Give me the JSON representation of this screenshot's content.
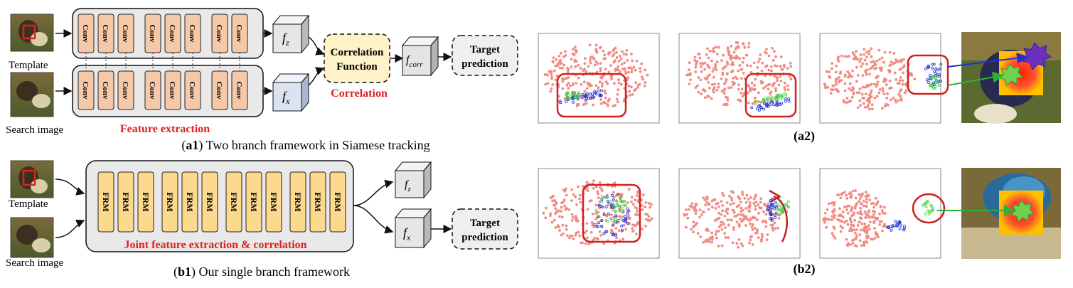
{
  "panel_a1": {
    "template_label": "Template",
    "search_label": "Search image",
    "conv_label": "Conv",
    "conv_count": 9,
    "fz_label": "f",
    "fz_sub": "z",
    "fx_label": "f",
    "fx_sub": "x",
    "corr_func_line1": "Correlation",
    "corr_func_line2": "Function",
    "fcorr_label": "f",
    "fcorr_sub": "corr",
    "target_line1": "Target",
    "target_line2": "prediction",
    "feature_extraction": "Feature extraction",
    "correlation": "Correlation",
    "caption_bold": "a1",
    "caption_text": ") Two branch framework in Siamese tracking"
  },
  "panel_b1": {
    "template_label": "Template",
    "search_label": "Search image",
    "frm_label": "FRM",
    "frm_count": 12,
    "fz_label": "f",
    "fz_sub": "z",
    "fx_label": "f",
    "fx_sub": "x",
    "target_line1": "Target",
    "target_line2": "prediction",
    "joint_label": "Joint feature extraction & correlation",
    "caption_bold": "b1",
    "caption_text": ") Our single branch framework"
  },
  "panel_a2": {
    "caption": "(a2)"
  },
  "panel_b2": {
    "caption": "(b2)"
  },
  "colors": {
    "conv_fill": "#f5c9a8",
    "frm_fill": "#fcd98d",
    "corr_fill": "#fff2c8",
    "cube_fill": "#dfe6f2",
    "cube_gray": "#e8e8e8",
    "red": "#e02020",
    "pink_points": "#f08c84",
    "blue_points": "#2030d0",
    "green_points": "#40d040"
  }
}
